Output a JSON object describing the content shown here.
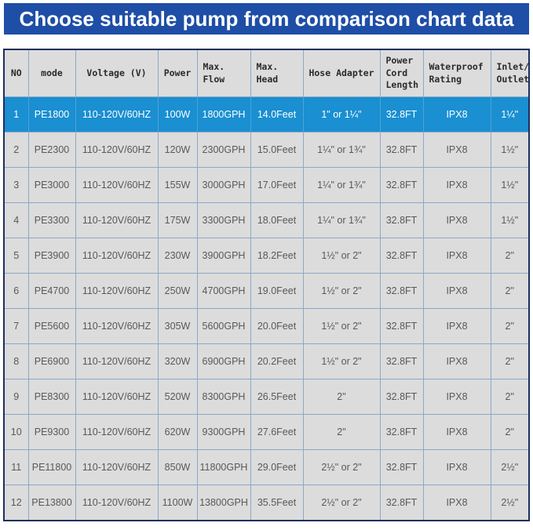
{
  "title": "Choose suitable pump from comparison chart data",
  "colors": {
    "banner_blue": "#1e4ea6",
    "highlight_row_blue": "#1a8fd1",
    "cell_background": "#dcdcdc",
    "grid_border": "#8ca9c6",
    "outer_border": "#1b2f5e",
    "body_text": "#58595b"
  },
  "chart_data": {
    "type": "table",
    "title": "Choose suitable pump from comparison chart data",
    "highlighted_row_index": 0,
    "columns": [
      {
        "key": "no",
        "label": "NO",
        "align": "c",
        "width": 31
      },
      {
        "key": "mode",
        "label": "mode",
        "align": "c",
        "width": 60
      },
      {
        "key": "voltage",
        "label": "Voltage (V)",
        "align": "c",
        "width": 105
      },
      {
        "key": "power",
        "label": "Power",
        "align": "c",
        "width": 50
      },
      {
        "key": "maxflow",
        "label": "Max.\nFlow",
        "align": "l",
        "width": 68
      },
      {
        "key": "maxhead",
        "label": "Max.\nHead",
        "align": "l",
        "width": 67
      },
      {
        "key": "hose",
        "label": "Hose Adapter",
        "align": "c",
        "width": 98
      },
      {
        "key": "cord",
        "label": "Power\nCord\nLength",
        "align": "l",
        "width": 55
      },
      {
        "key": "rating",
        "label": "Waterproof\nRating",
        "align": "l",
        "width": 86
      },
      {
        "key": "inlet",
        "label": "Inlet/\nOutlet",
        "align": "l",
        "width": 49
      }
    ],
    "rows": [
      {
        "no": "1",
        "mode": "PE1800",
        "voltage": "110-120V/60HZ",
        "power": "100W",
        "maxflow": "1800GPH",
        "maxhead": "14.0Feet",
        "hose": "1\" or 1¼\"",
        "cord": "32.8FT",
        "rating": "IPX8",
        "inlet": "1¼\""
      },
      {
        "no": "2",
        "mode": "PE2300",
        "voltage": "110-120V/60HZ",
        "power": "120W",
        "maxflow": "2300GPH",
        "maxhead": "15.0Feet",
        "hose": "1¼\" or 1¾\"",
        "cord": "32.8FT",
        "rating": "IPX8",
        "inlet": "1½\""
      },
      {
        "no": "3",
        "mode": "PE3000",
        "voltage": "110-120V/60HZ",
        "power": "155W",
        "maxflow": "3000GPH",
        "maxhead": "17.0Feet",
        "hose": "1¼\" or 1¾\"",
        "cord": "32.8FT",
        "rating": "IPX8",
        "inlet": "1½\""
      },
      {
        "no": "4",
        "mode": "PE3300",
        "voltage": "110-120V/60HZ",
        "power": "175W",
        "maxflow": "3300GPH",
        "maxhead": "18.0Feet",
        "hose": "1¼\" or 1¾\"",
        "cord": "32.8FT",
        "rating": "IPX8",
        "inlet": "1½\""
      },
      {
        "no": "5",
        "mode": "PE3900",
        "voltage": "110-120V/60HZ",
        "power": "230W",
        "maxflow": "3900GPH",
        "maxhead": "18.2Feet",
        "hose": "1½\" or 2\"",
        "cord": "32.8FT",
        "rating": "IPX8",
        "inlet": "2\""
      },
      {
        "no": "6",
        "mode": "PE4700",
        "voltage": "110-120V/60HZ",
        "power": "250W",
        "maxflow": "4700GPH",
        "maxhead": "19.0Feet",
        "hose": "1½\" or 2\"",
        "cord": "32.8FT",
        "rating": "IPX8",
        "inlet": "2\""
      },
      {
        "no": "7",
        "mode": "PE5600",
        "voltage": "110-120V/60HZ",
        "power": "305W",
        "maxflow": "5600GPH",
        "maxhead": "20.0Feet",
        "hose": "1½\" or 2\"",
        "cord": "32.8FT",
        "rating": "IPX8",
        "inlet": "2\""
      },
      {
        "no": "8",
        "mode": "PE6900",
        "voltage": "110-120V/60HZ",
        "power": "320W",
        "maxflow": "6900GPH",
        "maxhead": "20.2Feet",
        "hose": "1½\" or 2\"",
        "cord": "32.8FT",
        "rating": "IPX8",
        "inlet": "2\""
      },
      {
        "no": "9",
        "mode": "PE8300",
        "voltage": "110-120V/60HZ",
        "power": "520W",
        "maxflow": "8300GPH",
        "maxhead": "26.5Feet",
        "hose": "2\"",
        "cord": "32.8FT",
        "rating": "IPX8",
        "inlet": "2\""
      },
      {
        "no": "10",
        "mode": "PE9300",
        "voltage": "110-120V/60HZ",
        "power": "620W",
        "maxflow": "9300GPH",
        "maxhead": "27.6Feet",
        "hose": "2\"",
        "cord": "32.8FT",
        "rating": "IPX8",
        "inlet": "2\""
      },
      {
        "no": "11",
        "mode": "PE11800",
        "voltage": "110-120V/60HZ",
        "power": "850W",
        "maxflow": "11800GPH",
        "maxhead": "29.0Feet",
        "hose": "2½\" or 2\"",
        "cord": "32.8FT",
        "rating": "IPX8",
        "inlet": "2½\""
      },
      {
        "no": "12",
        "mode": "PE13800",
        "voltage": "110-120V/60HZ",
        "power": "1100W",
        "maxflow": "13800GPH",
        "maxhead": "35.5Feet",
        "hose": "2½\" or 2\"",
        "cord": "32.8FT",
        "rating": "IPX8",
        "inlet": "2½\""
      }
    ]
  }
}
